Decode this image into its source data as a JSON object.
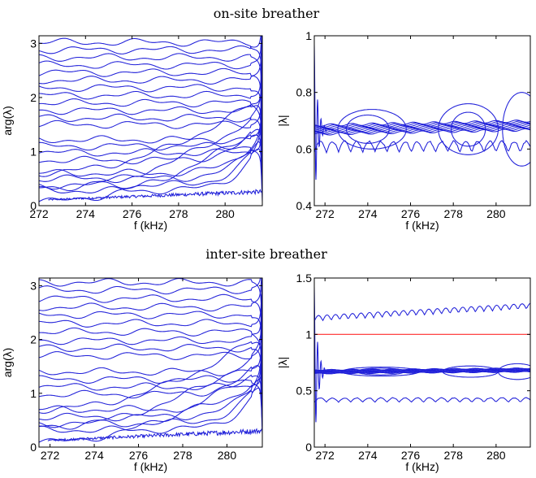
{
  "figure": {
    "top_title": "on-site breather",
    "bottom_title": "inter-site breather"
  },
  "colors": {
    "curves": "#1f1fd9",
    "reference_line": "#ff2b2b",
    "axes": "#000000"
  },
  "chart_data": [
    {
      "id": "onsite-arg",
      "type": "line",
      "xlabel": "f (kHz)",
      "ylabel": "arg(λ)",
      "xlim": [
        272,
        281.6
      ],
      "ylim": [
        0,
        3.14159
      ],
      "xticks": [
        272,
        274,
        276,
        278,
        280
      ],
      "yticks": [
        0,
        1,
        2,
        3
      ],
      "series_description_values": {
        "phase_start_values": [
          0.17,
          0.28,
          0.38,
          0.5,
          0.6,
          0.72,
          0.84,
          0.98,
          1.1,
          1.22,
          1.36,
          1.5,
          1.62,
          1.76,
          1.9,
          2.04,
          2.18,
          2.32,
          2.46,
          2.6,
          2.74,
          2.88,
          3.02
        ],
        "noisy_band_min": 0.03,
        "noisy_band_max": 0.3
      }
    },
    {
      "id": "onsite-mod",
      "type": "line",
      "xlabel": "f (kHz)",
      "ylabel": "|λ|",
      "xlim": [
        271.5,
        281.6
      ],
      "ylim": [
        0.4,
        1.0
      ],
      "xticks": [
        272,
        274,
        276,
        278,
        280
      ],
      "yticks": [
        0.4,
        0.6,
        0.8,
        1.0
      ],
      "center_value": 0.67,
      "lower_curve_range": [
        0.55,
        0.63
      ],
      "bubbles": [
        {
          "center": 274.2,
          "halfwidth": 1.6,
          "amplitude": 0.07
        },
        {
          "center": 274.0,
          "halfwidth": 1.0,
          "amplitude": 0.05
        },
        {
          "center": 278.7,
          "halfwidth": 1.4,
          "amplitude": 0.09
        },
        {
          "center": 278.7,
          "halfwidth": 0.8,
          "amplitude": 0.06
        },
        {
          "center": 281.2,
          "halfwidth": 0.9,
          "amplitude": 0.13
        }
      ]
    },
    {
      "id": "intersite-arg",
      "type": "line",
      "xlabel": "f (kHz)",
      "ylabel": "arg(λ)",
      "xlim": [
        271.5,
        281.6
      ],
      "ylim": [
        0,
        3.14159
      ],
      "xticks": [
        272,
        274,
        276,
        278,
        280
      ],
      "yticks": [
        0,
        1,
        2,
        3
      ],
      "series_description_values": {
        "phase_start_values": [
          0.2,
          0.32,
          0.44,
          0.56,
          0.7,
          0.84,
          0.98,
          1.12,
          1.26,
          1.4,
          1.56,
          1.7,
          1.84,
          1.98,
          2.14,
          2.3,
          2.46,
          2.6,
          2.76,
          2.92,
          3.06
        ],
        "noisy_band_min": 0.03,
        "noisy_band_max": 0.35
      }
    },
    {
      "id": "intersite-mod",
      "type": "line",
      "xlabel": "f (kHz)",
      "ylabel": "|λ|",
      "xlim": [
        271.5,
        281.6
      ],
      "ylim": [
        0,
        1.5
      ],
      "xticks": [
        272,
        274,
        276,
        278,
        280
      ],
      "yticks": [
        0,
        0.5,
        1,
        1.5
      ],
      "tick_labels": [
        "0",
        "0.5",
        "1",
        "1.5"
      ],
      "reference_line_value": 1.0,
      "center_value": 0.67,
      "upper_curve_range": [
        1.05,
        1.27
      ],
      "lower_curve_range": [
        0.36,
        0.44
      ]
    }
  ]
}
